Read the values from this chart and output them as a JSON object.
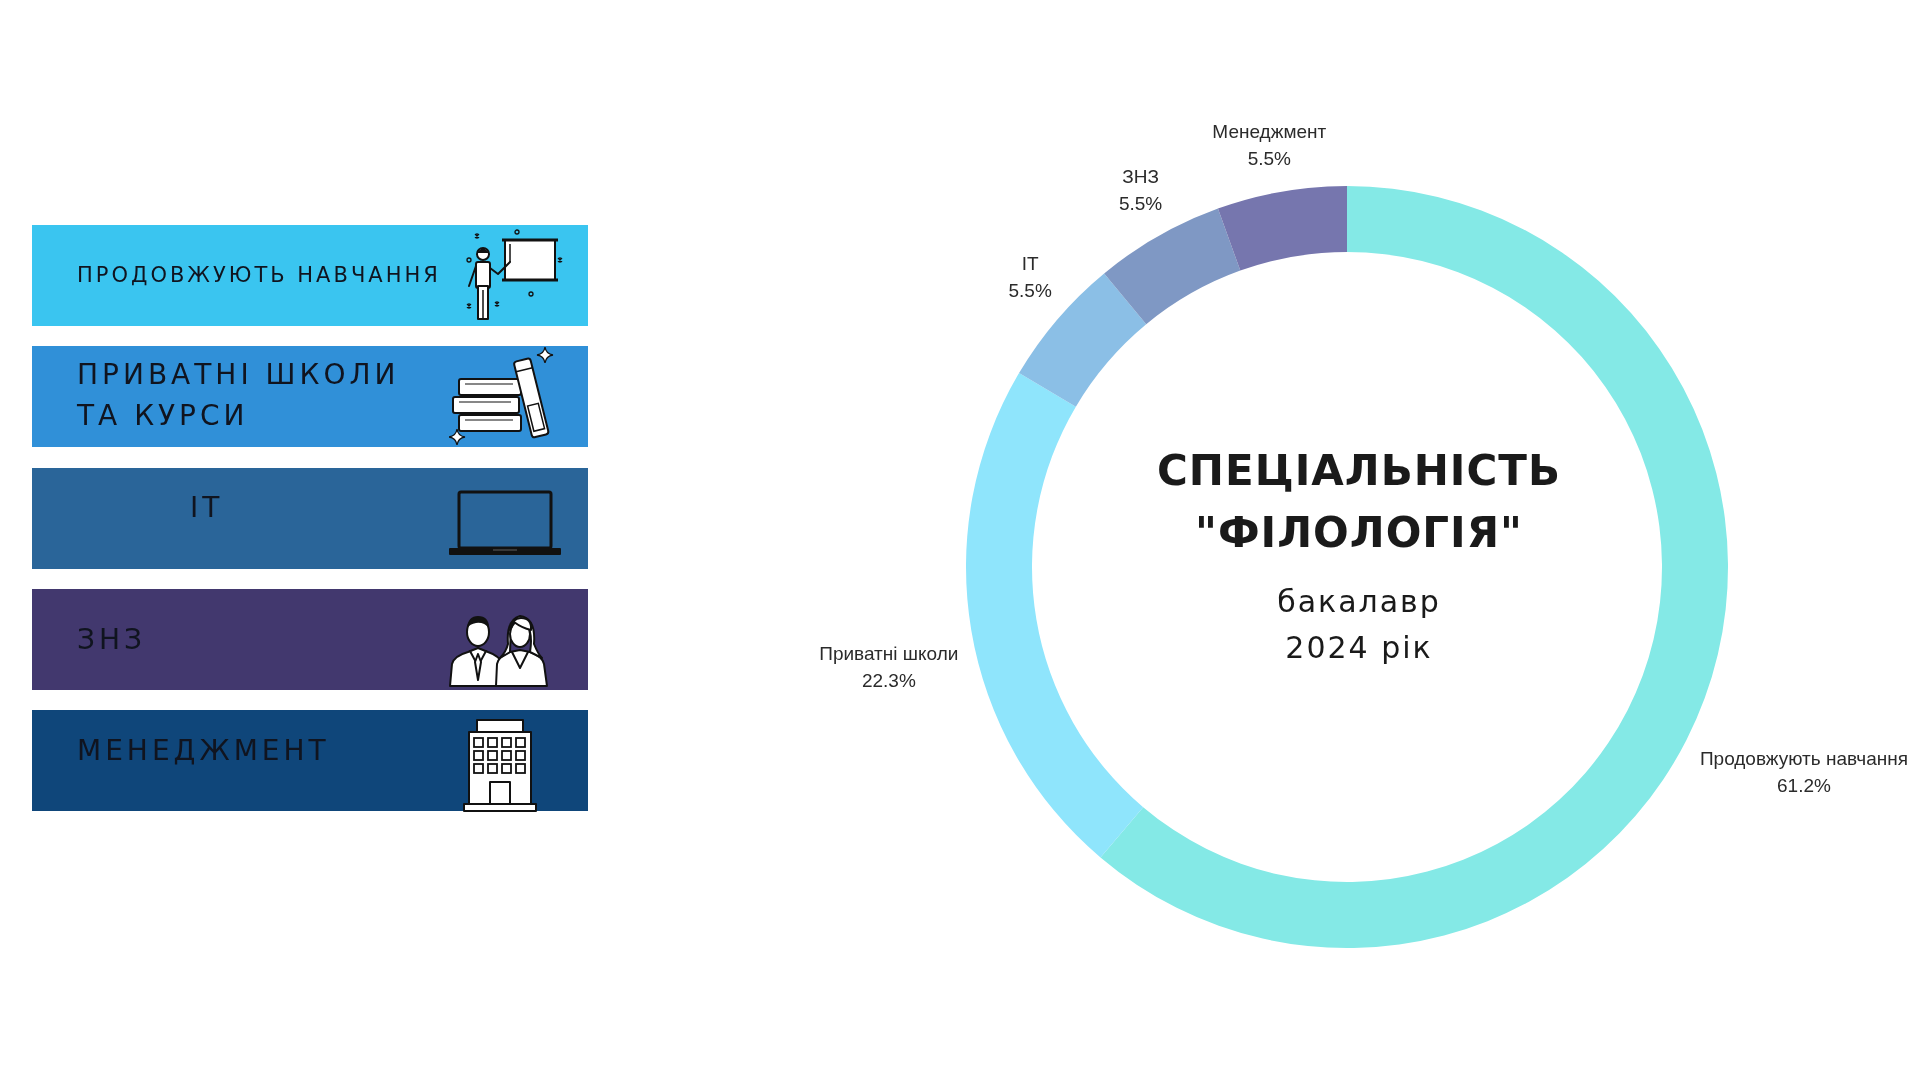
{
  "chart_data": [
    {
      "type": "other",
      "annotations": [
        "ПРОДОВЖУЮТЬ НАВЧАННЯ",
        "ПРИВАТНІ ШКОЛИ ТА КУРСИ",
        "IT",
        "ЗНЗ",
        "МЕНЕДЖМЕНТ"
      ]
    },
    {
      "type": "donut",
      "title": "СПЕЦІАЛЬНІСТЬ \"ФІЛОЛОГІЯ\"",
      "subtitle": "бакалавр 2024 рік",
      "categories": [
        "Продовжують навчання",
        "Приватні школи",
        "IT",
        "ЗНЗ",
        "Менеджмент"
      ],
      "values": [
        61.2,
        22.3,
        5.5,
        5.5,
        5.5
      ],
      "colors": [
        "#84e9e6",
        "#8fe5fc",
        "#8bbfe6",
        "#7f98c4",
        "#7676ae"
      ],
      "value_labels": [
        "61.2%",
        "22.3%",
        "5.5%",
        "5.5%",
        "5.5%"
      ]
    }
  ]
}
